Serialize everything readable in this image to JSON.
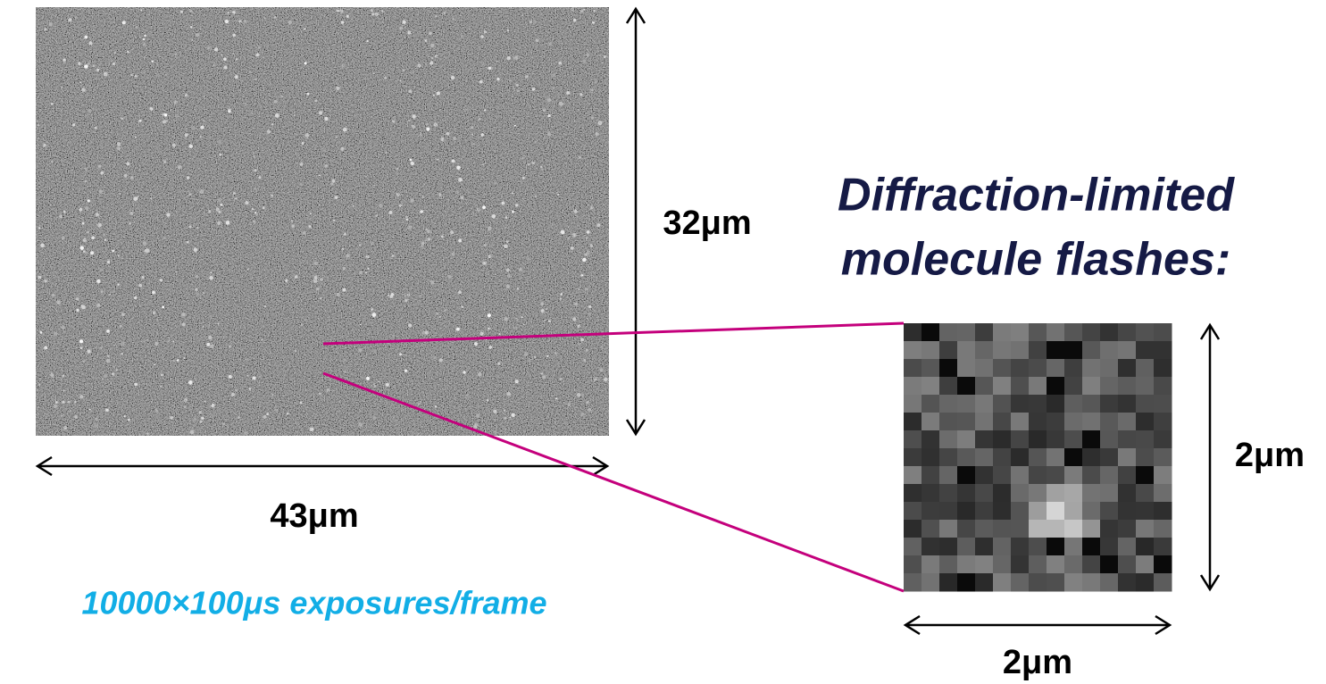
{
  "main_image": {
    "height_label": "32μm",
    "width_label": "43μm",
    "exposure_note": "10000×100μs exposures/frame"
  },
  "zoom_image": {
    "title_lines": [
      "Diffraction-limited",
      "molecule flashes:"
    ],
    "height_label": "2μm",
    "width_label": "2μm"
  }
}
